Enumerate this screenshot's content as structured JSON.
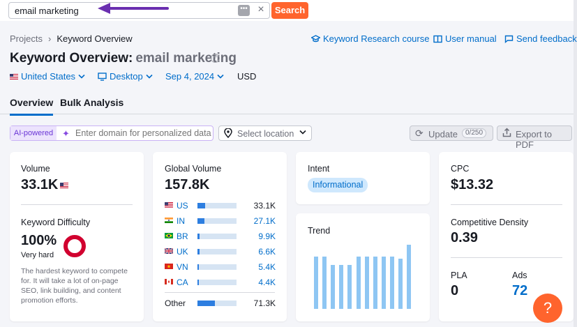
{
  "search": {
    "value": "email marketing",
    "dots": "•••",
    "clear": "×",
    "button": "Search"
  },
  "breadcrumb": {
    "root": "Projects",
    "separator": "›",
    "current": "Keyword Overview"
  },
  "links": {
    "course": "Keyword Research course",
    "manual": "User manual",
    "feedback": "Send feedback"
  },
  "title": {
    "prefix": "Keyword Overview:",
    "keyword": "email marketing",
    "add": "+"
  },
  "filters": {
    "country": "United States",
    "device": "Desktop",
    "date": "Sep 4, 2024",
    "currency": "USD"
  },
  "tabs": [
    "Overview",
    "Bulk Analysis"
  ],
  "ai": {
    "label": "AI-powered",
    "placeholder": "Enter domain for personalized data"
  },
  "location": {
    "placeholder": "Select location"
  },
  "update": {
    "label": "Update",
    "count": "0/250"
  },
  "export": {
    "label": "Export to PDF"
  },
  "volume": {
    "label": "Volume",
    "value": "33.1K"
  },
  "kd": {
    "label": "Keyword Difficulty",
    "value": "100%",
    "level": "Very hard",
    "description": "The hardest keyword to compete for. It will take a lot of on-page SEO, link building, and content promotion efforts."
  },
  "global": {
    "label": "Global Volume",
    "value": "157.8K",
    "rows": [
      {
        "code": "US",
        "value": "33.1K",
        "share": 0.2
      },
      {
        "code": "IN",
        "value": "27.1K",
        "share": 0.17
      },
      {
        "code": "BR",
        "value": "9.9K",
        "share": 0.06
      },
      {
        "code": "UK",
        "value": "6.6K",
        "share": 0.05
      },
      {
        "code": "VN",
        "value": "5.4K",
        "share": 0.04
      },
      {
        "code": "CA",
        "value": "4.4K",
        "share": 0.03
      }
    ],
    "other": {
      "label": "Other",
      "value": "71.3K",
      "share": 0.45
    }
  },
  "intent": {
    "label": "Intent",
    "value": "Informational"
  },
  "trend": {
    "label": "Trend",
    "values": [
      0.82,
      0.82,
      0.68,
      0.68,
      0.68,
      0.82,
      0.82,
      0.82,
      0.82,
      0.82,
      0.78,
      1.0
    ]
  },
  "cpc": {
    "label": "CPC",
    "value": "$13.32"
  },
  "density": {
    "label": "Competitive Density",
    "value": "0.39"
  },
  "pla": {
    "label": "PLA",
    "value": "0"
  },
  "ads": {
    "label": "Ads",
    "value": "72"
  },
  "help": {
    "label": "?"
  },
  "colors": {
    "accent": "#006dca",
    "orange": "#ff642d",
    "kd_red": "#d1002f",
    "ai_purple": "#6a35d6"
  },
  "icons": [
    "purple-arrow-annotation",
    "graduation-cap-icon",
    "book-icon",
    "chat-icon",
    "desktop-icon",
    "sparkle-icon",
    "location-pin-icon",
    "refresh-icon",
    "export-icon",
    "us-flag-icon"
  ]
}
